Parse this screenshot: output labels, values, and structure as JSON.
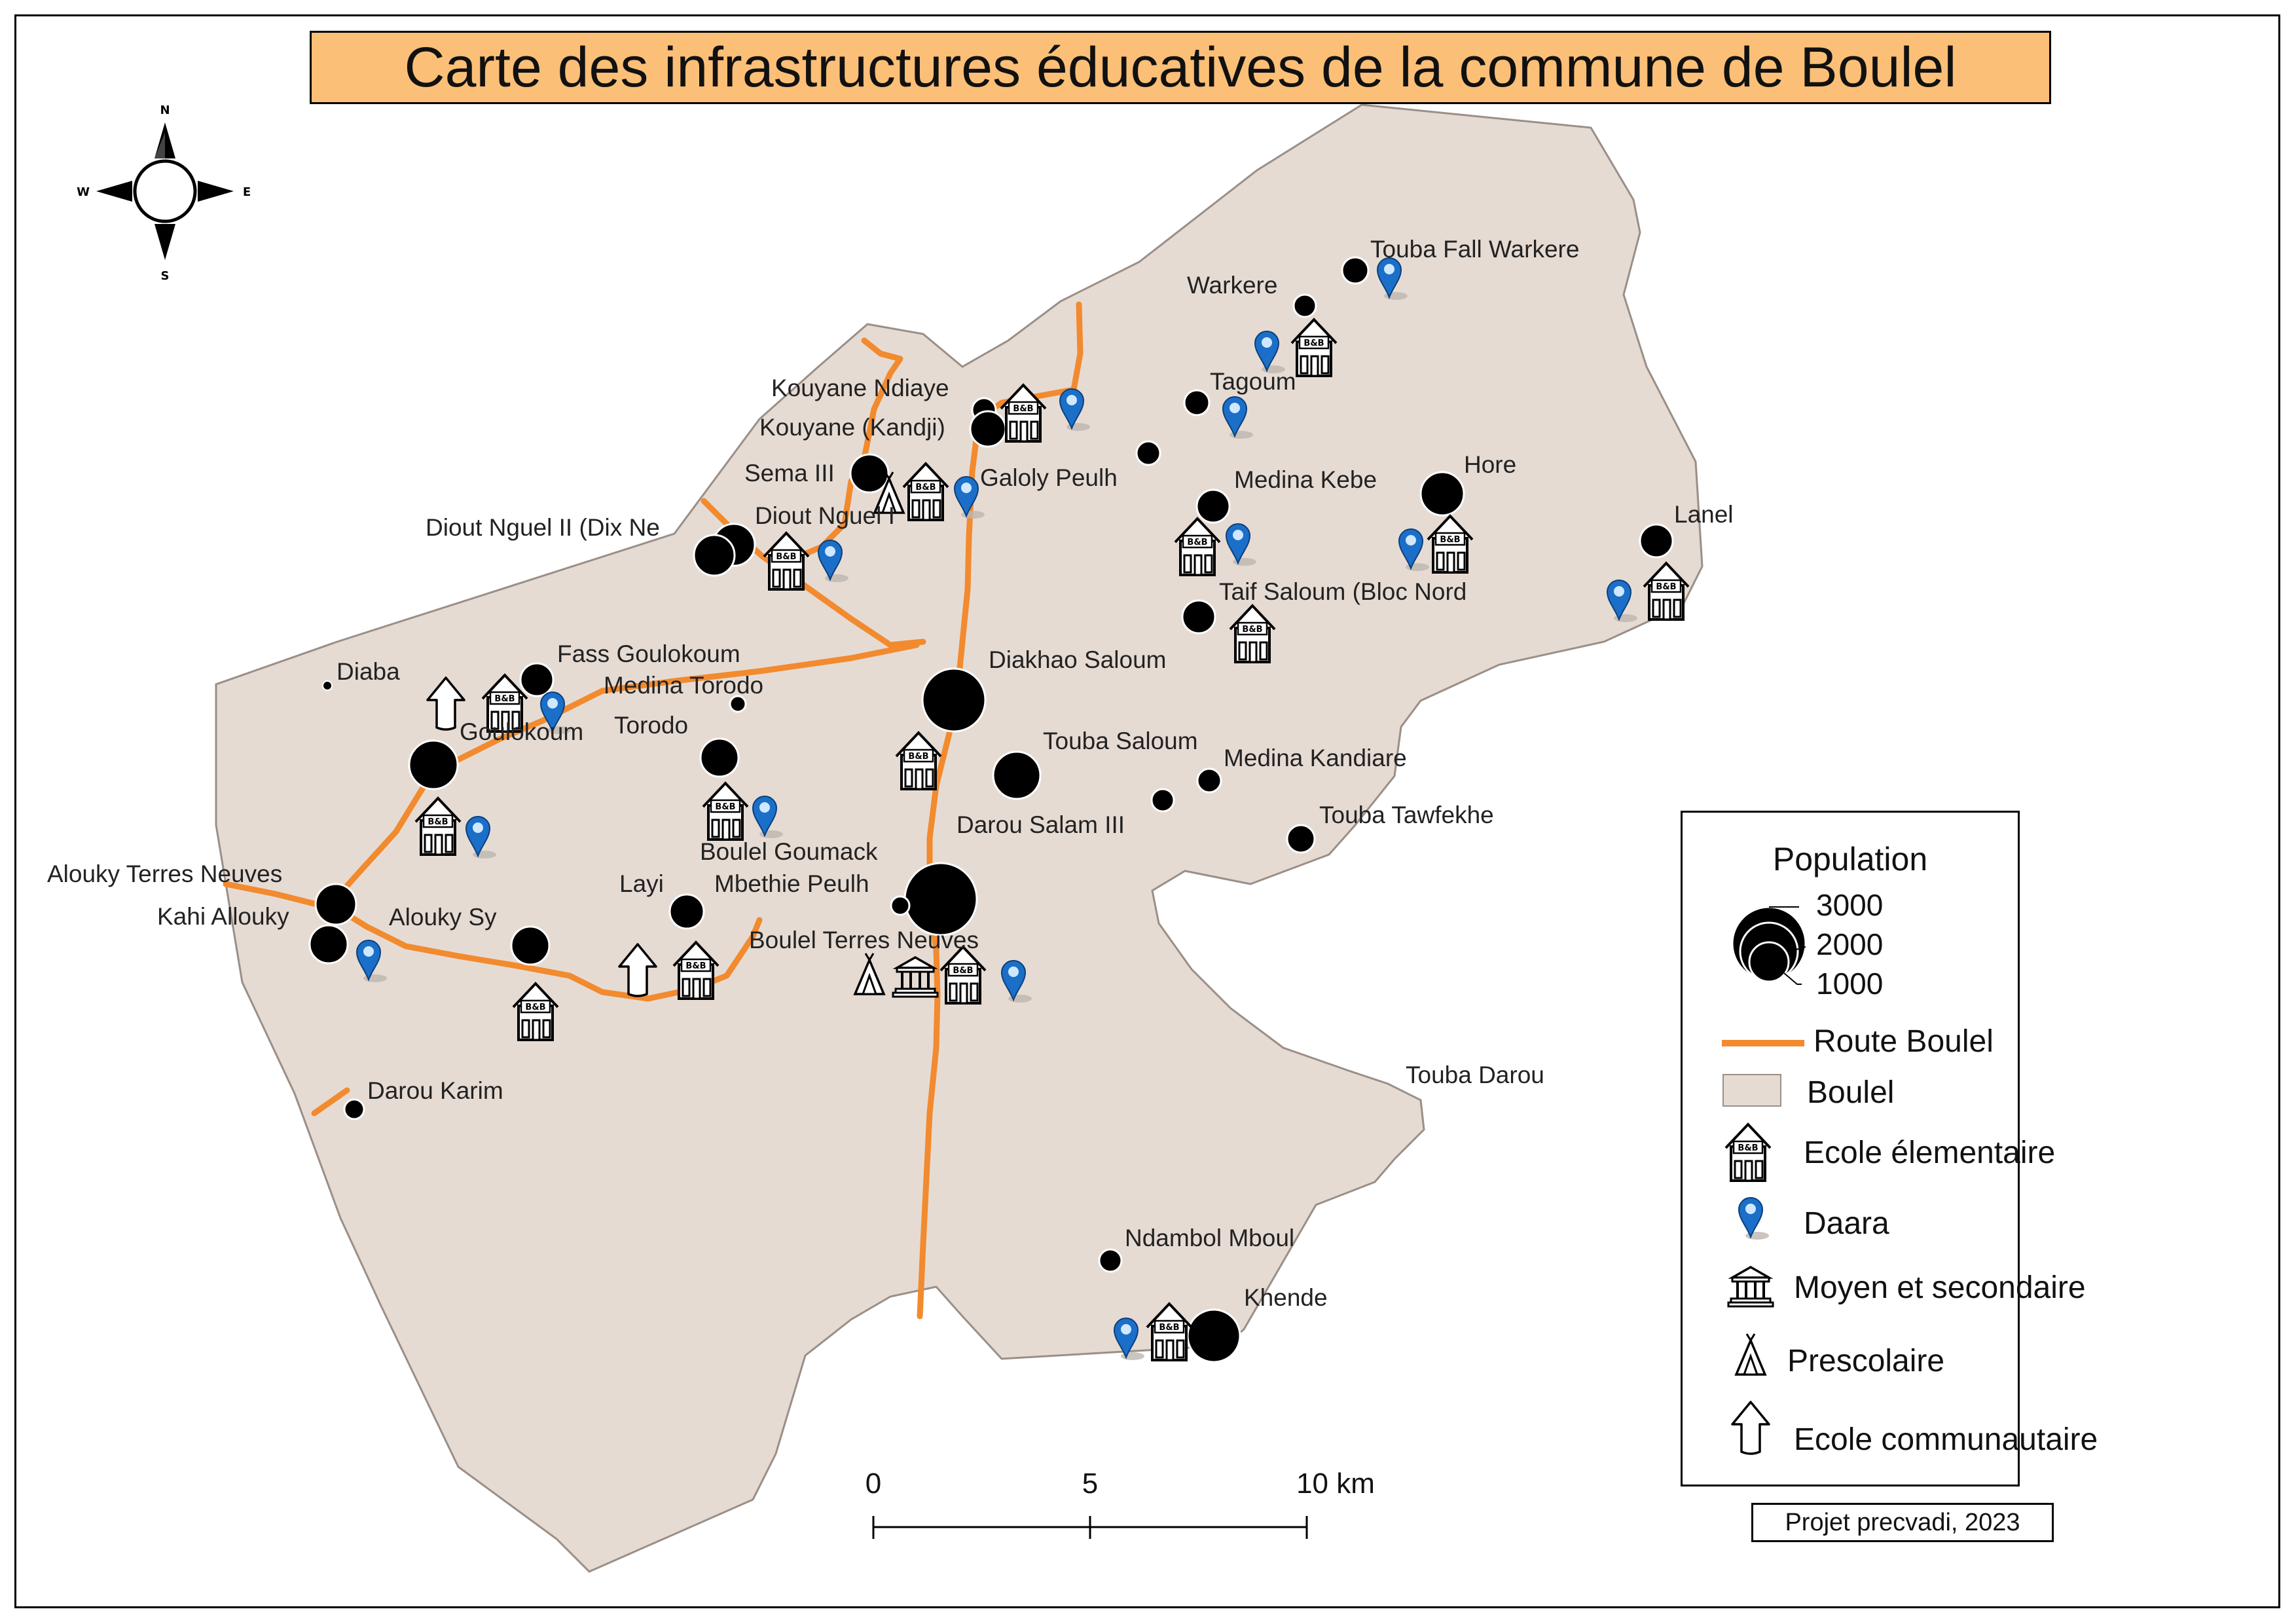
{
  "title": "Carte des infrastructures éducatives de la commune de Boulel",
  "colors": {
    "commune_fill": "#e6dbd3",
    "commune_stroke": "#9a8f88",
    "route": "#f28a2e",
    "title_bg": "#fbbf77",
    "daara_pin": "#1b6fc9",
    "settlement": "#000000"
  },
  "compass": {
    "n": "N",
    "s": "S",
    "e": "E",
    "w": "W"
  },
  "places": [
    {
      "name": "Touba Fall Warkere",
      "population_class": "small"
    },
    {
      "name": "Warkere",
      "population_class": "tiny"
    },
    {
      "name": "Tagoum",
      "population_class": "tiny"
    },
    {
      "name": "Kouyane Ndiaye",
      "population_class": "tiny"
    },
    {
      "name": "Kouyane (Kandji)",
      "population_class": "small"
    },
    {
      "name": "Sema III",
      "population_class": "medium"
    },
    {
      "name": "Galoly Peulh",
      "population_class": "tiny"
    },
    {
      "name": "Medina Kebe",
      "population_class": "small"
    },
    {
      "name": "Hore",
      "population_class": "medium"
    },
    {
      "name": "Lanel",
      "population_class": "small"
    },
    {
      "name": "Diout Nguel II (Dix Ne",
      "population_class": "medium"
    },
    {
      "name": "Diout Nguel I",
      "population_class": "medium"
    },
    {
      "name": "Taif Saloum (Bloc Nord",
      "population_class": "small"
    },
    {
      "name": "Diakhao Saloum",
      "population_class": "large"
    },
    {
      "name": "Diaba",
      "population_class": "tiny"
    },
    {
      "name": "Fass Goulokoum",
      "population_class": "small"
    },
    {
      "name": "Medina Torodo",
      "population_class": "tiny"
    },
    {
      "name": "Goulokoum",
      "population_class": "medium"
    },
    {
      "name": "Torodo",
      "population_class": "small"
    },
    {
      "name": "Touba Saloum",
      "population_class": "medium"
    },
    {
      "name": "Medina Kandiare",
      "population_class": "tiny"
    },
    {
      "name": "Darou Salam III",
      "population_class": "tiny"
    },
    {
      "name": "Touba Tawfekhe",
      "population_class": "tiny"
    },
    {
      "name": "Boulel Goumack",
      "population_class": "tiny"
    },
    {
      "name": "Mbethie Peulh",
      "population_class": "tiny"
    },
    {
      "name": "Boulel Terres Neuves",
      "population_class": "large"
    },
    {
      "name": "Alouky Terres Neuves",
      "population_class": "medium"
    },
    {
      "name": "Kahi Allouky",
      "population_class": "medium"
    },
    {
      "name": "Alouky Sy",
      "population_class": "medium"
    },
    {
      "name": "Layi",
      "population_class": "small"
    },
    {
      "name": "Darou Karim",
      "population_class": "tiny"
    },
    {
      "name": "Touba Darou",
      "population_class": "none"
    },
    {
      "name": "Ndambol Mboul",
      "population_class": "tiny"
    },
    {
      "name": "Khende",
      "population_class": "large"
    }
  ],
  "scale_bar": {
    "labels": [
      "0",
      "5",
      "10 km"
    ]
  },
  "legend": {
    "title": "Population",
    "population_values": [
      "3000",
      "2000",
      "1000"
    ],
    "items": [
      {
        "label": "Route Boulel",
        "icon": "route-line"
      },
      {
        "label": "Boulel",
        "icon": "commune-area"
      },
      {
        "label": "Ecole élementaire",
        "icon": "school-icon"
      },
      {
        "label": "Daara",
        "icon": "daara-pin-icon"
      },
      {
        "label": "Moyen et secondaire",
        "icon": "secondary-school-icon"
      },
      {
        "label": "Prescolaire",
        "icon": "preschool-icon"
      },
      {
        "label": "Ecole communautaire",
        "icon": "community-school-icon"
      }
    ]
  },
  "credit": "Projet precvadi, 2023"
}
